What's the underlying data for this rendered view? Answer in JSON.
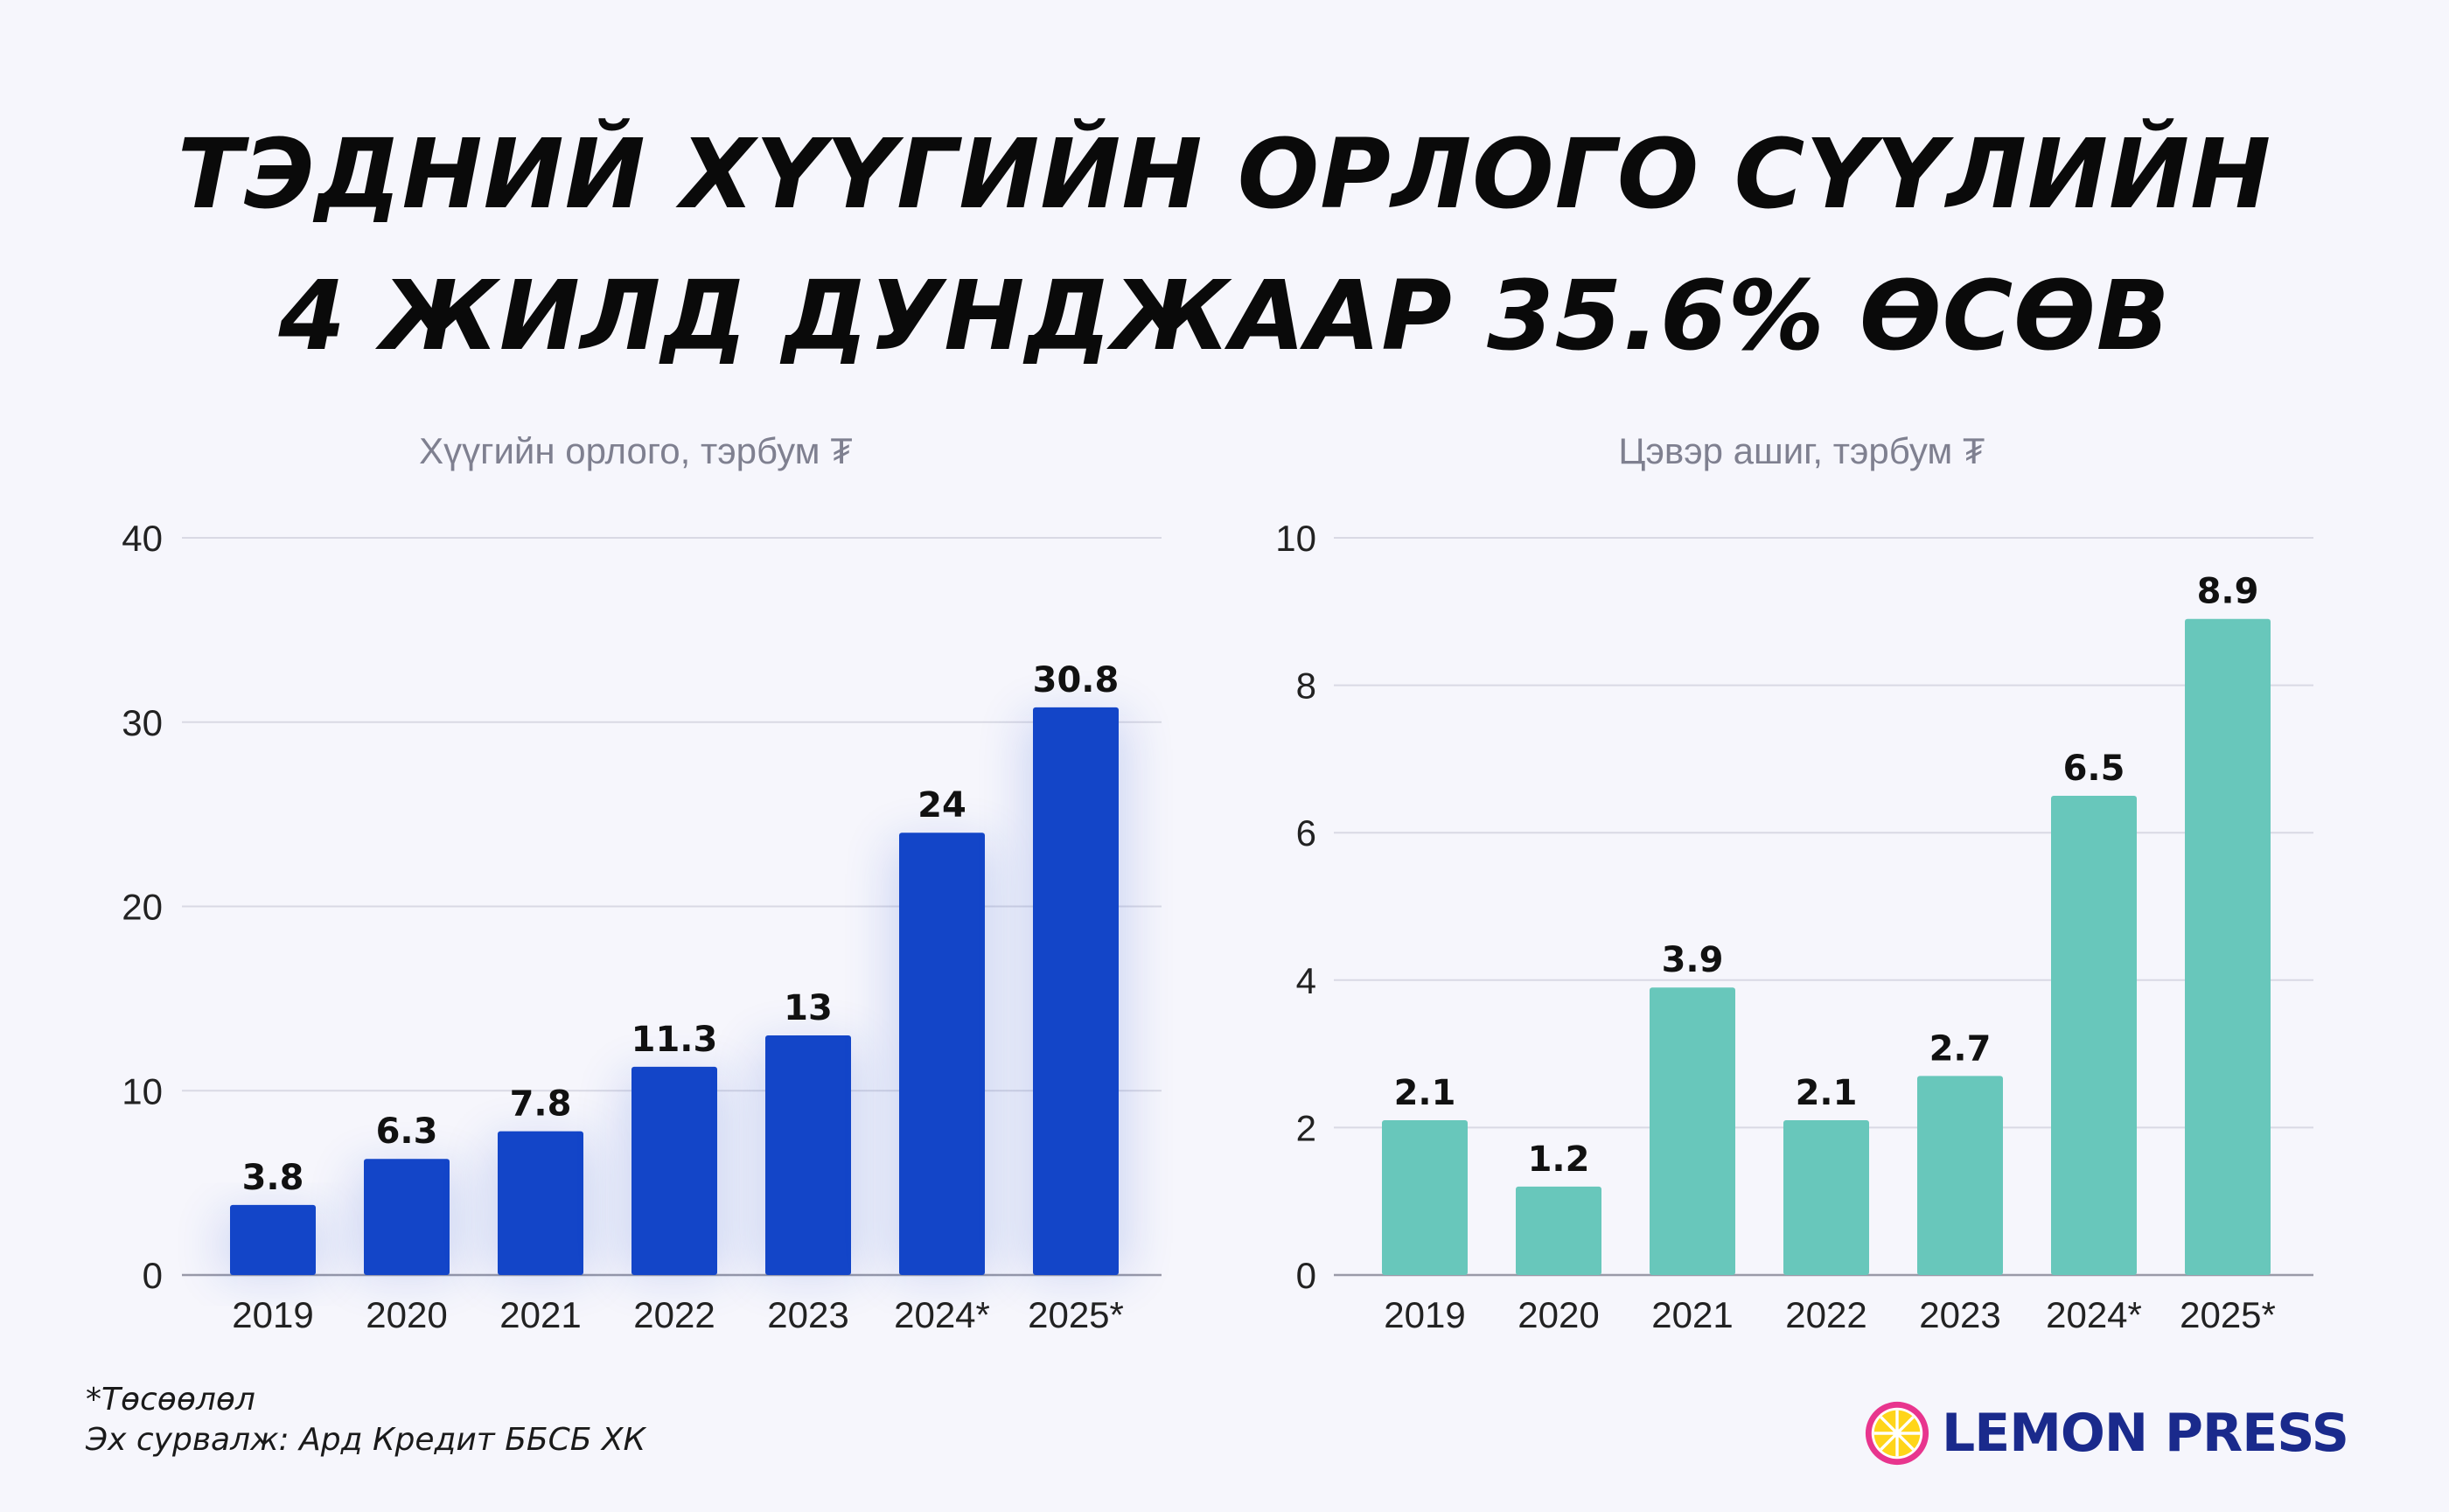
{
  "headline": {
    "line1": "ТЭДНИЙ ХҮҮГИЙН ОРЛОГО СҮҮЛИЙН",
    "line2": "4 ЖИЛД ДУНДЖААР 35.6% ӨСӨВ"
  },
  "chart_data": [
    {
      "type": "bar",
      "title": "Хүүгийн орлого, тэрбум ₮",
      "categories": [
        "2019",
        "2020",
        "2021",
        "2022",
        "2023",
        "2024*",
        "2025*"
      ],
      "values": [
        3.8,
        6.3,
        7.8,
        11.3,
        13,
        24,
        30.8
      ],
      "value_labels": [
        "3.8",
        "6.3",
        "7.8",
        "11.3",
        "13",
        "24",
        "30.8"
      ],
      "ylim": [
        0,
        40
      ],
      "yticks": [
        0,
        10,
        20,
        30,
        40
      ],
      "grid": true,
      "color": "#1345c8"
    },
    {
      "type": "bar",
      "title": "Цэвэр ашиг, тэрбум ₮",
      "categories": [
        "2019",
        "2020",
        "2021",
        "2022",
        "2023",
        "2024*",
        "2025*"
      ],
      "values": [
        2.1,
        1.2,
        3.9,
        2.1,
        2.7,
        6.5,
        8.9
      ],
      "value_labels": [
        "2.1",
        "1.2",
        "3.9",
        "2.1",
        "2.7",
        "6.5",
        "8.9"
      ],
      "ylim": [
        0,
        10
      ],
      "yticks": [
        0,
        2,
        4,
        6,
        8,
        10
      ],
      "grid": true,
      "color": "#68c7bb"
    }
  ],
  "footnote": {
    "projection": "*Төсөөлөл",
    "source": "Эх сурвалж: Ард Кредит ББСБ ХК"
  },
  "logo": {
    "text": "LEMON PRESS",
    "icon": "lemon-slice-icon"
  }
}
